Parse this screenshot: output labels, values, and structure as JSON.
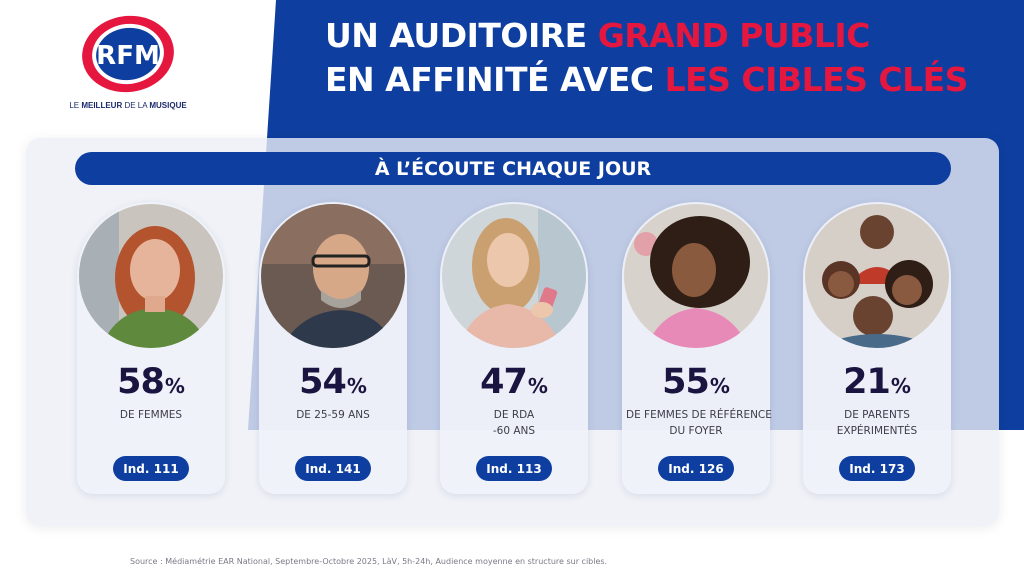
{
  "brand": {
    "logo_text": "RFM",
    "tagline_normal_1": "LE ",
    "tagline_bold_1": "MEILLEUR",
    "tagline_normal_2": " DE LA ",
    "tagline_bold_2": "MUSIQUE",
    "colors": {
      "navy": "#0e3fa0",
      "red": "#e5173f",
      "dark_text": "#1a1440"
    }
  },
  "headline": {
    "line1_white": "UN AUDITOIRE ",
    "line1_red": "GRAND PUBLIC",
    "line2_white": "EN AFFINITÉ AVEC ",
    "line2_red": "LES CIBLES CLÉS"
  },
  "banner": "À L’ÉCOUTE CHAQUE JOUR",
  "cards": [
    {
      "value": "58",
      "unit": "%",
      "label_lines": [
        "DE FEMMES"
      ],
      "index": "Ind. 111",
      "photo": "woman-portrait"
    },
    {
      "value": "54",
      "unit": "%",
      "label_lines": [
        "DE 25-59 ANS"
      ],
      "index": "Ind. 141",
      "photo": "man-with-glasses-portrait"
    },
    {
      "value": "47",
      "unit": "%",
      "label_lines": [
        "DE RDA",
        "-60 ANS"
      ],
      "index": "Ind. 113",
      "photo": "woman-with-phone-portrait"
    },
    {
      "value": "55",
      "unit": "%",
      "label_lines": [
        "DE FEMMES DE RÉFÉRENCE",
        "DU FOYER"
      ],
      "index": "Ind. 126",
      "photo": "woman-curly-hair-portrait"
    },
    {
      "value": "21",
      "unit": "%",
      "label_lines": [
        "DE PARENTS",
        "EXPÉRIMENTÉS"
      ],
      "index": "Ind. 173",
      "photo": "family-portrait"
    }
  ],
  "source": "Source : Médiamétrie EAR National, Septembre-Octobre 2025, LàV, 5h-24h, Audience moyenne en structure sur cibles."
}
